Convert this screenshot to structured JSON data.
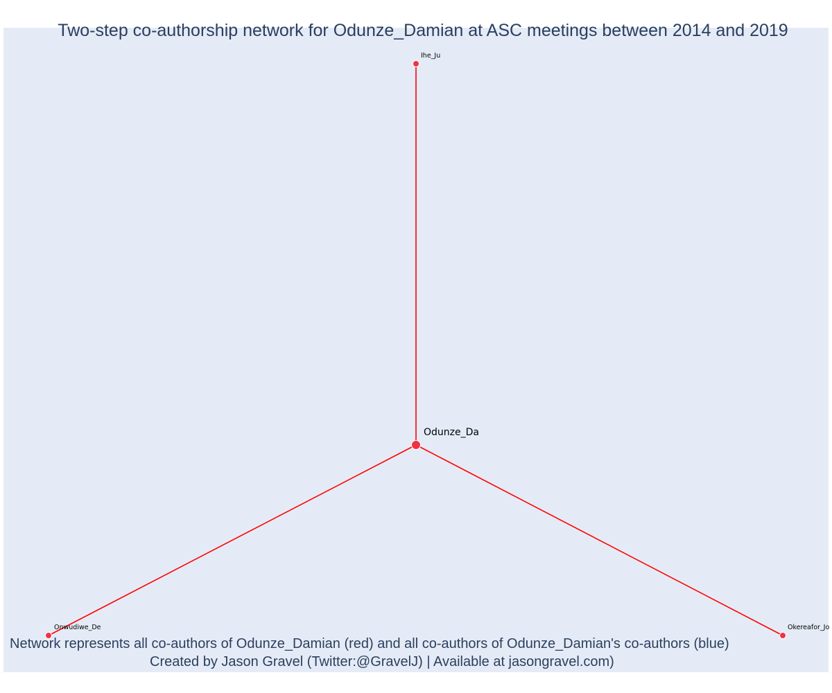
{
  "title": "Two-step co-authorship network for Odunze_Damian at ASC meetings between 2014 and 2019",
  "caption": {
    "line1": "Network represents all co-authors of Odunze_Damian (red) and all co-authors of Odunze_Damian's co-authors (blue)",
    "line2": "Created by Jason Gravel (Twitter:@GravelJ) | Available at jasongravel.com)"
  },
  "colors": {
    "background": "#e5ebf6",
    "edge": "#ff0000",
    "node": "#ef3340",
    "node_outline": "#ffffff",
    "text": "#2a3f5f"
  },
  "network": {
    "center": "Odunze_Da",
    "nodes": [
      {
        "id": "odunze",
        "label": "Odunze_Da",
        "role": "focal"
      },
      {
        "id": "ihe",
        "label": "Ihe_Ju",
        "role": "co-author"
      },
      {
        "id": "onwudiwe",
        "label": "Onwudiwe_De",
        "role": "co-author"
      },
      {
        "id": "okereafor",
        "label": "Okereafor_Jo",
        "role": "co-author"
      }
    ],
    "edges": [
      {
        "source": "odunze",
        "target": "ihe"
      },
      {
        "source": "odunze",
        "target": "onwudiwe"
      },
      {
        "source": "odunze",
        "target": "okereafor"
      }
    ]
  }
}
